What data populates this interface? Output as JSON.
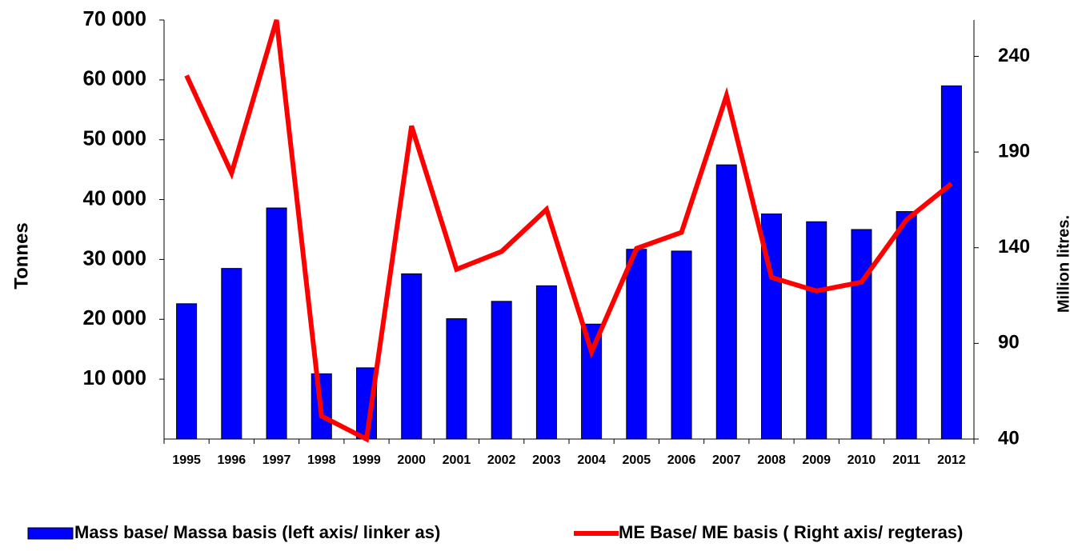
{
  "chart_data": {
    "type": "bar",
    "categories": [
      "1995",
      "1996",
      "1997",
      "1998",
      "1999",
      "2000",
      "2001",
      "2002",
      "2003",
      "2004",
      "2005",
      "2006",
      "2007",
      "2008",
      "2009",
      "2010",
      "2011",
      "2012"
    ],
    "series": [
      {
        "name": "Mass base/ Massa basis (left axis/ linker as)",
        "type": "bar",
        "color": "#0000ff",
        "values": [
          22600,
          28500,
          38600,
          10900,
          11900,
          27600,
          20100,
          23000,
          25600,
          19200,
          31700,
          31400,
          45800,
          37600,
          36300,
          35000,
          38000,
          59000
        ]
      },
      {
        "name": "ME Base/ ME basis ( Right axis/ regteras)",
        "type": "line",
        "axis": "y2",
        "color": "#ff0000",
        "values": [
          230,
          179,
          259,
          52,
          40,
          203.6,
          128.7,
          138,
          160,
          85.6,
          139.6,
          148,
          219.5,
          124.5,
          117.4,
          122,
          154.6,
          173.5
        ]
      }
    ],
    "ylabel": "Tonnes",
    "y2label": "Million litres.",
    "ylim": [
      0,
      70000
    ],
    "yticks": [
      {
        "value": 10000,
        "label": "10 000"
      },
      {
        "value": 20000,
        "label": "20 000"
      },
      {
        "value": 30000,
        "label": "30 000"
      },
      {
        "value": 40000,
        "label": "40 000"
      },
      {
        "value": 50000,
        "label": "50 000"
      },
      {
        "value": 60000,
        "label": "60 000"
      },
      {
        "value": 70000,
        "label": "70 000"
      }
    ],
    "y2lim": [
      40,
      259
    ],
    "y2ticks": [
      40,
      90,
      140,
      190,
      240
    ],
    "legend": "bottom"
  }
}
